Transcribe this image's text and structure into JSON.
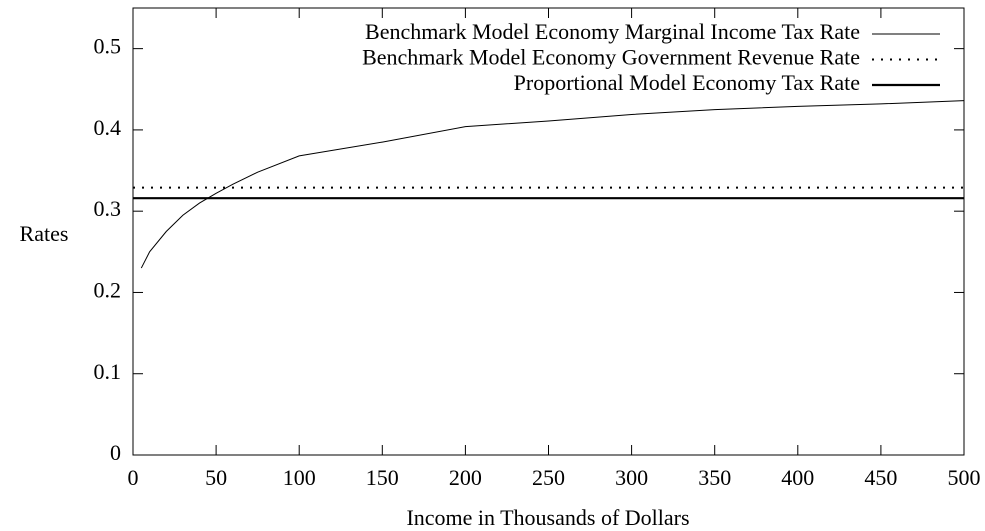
{
  "chart_data": {
    "type": "line",
    "xlabel": "Income in Thousands of Dollars",
    "ylabel": "Rates",
    "xlim": [
      0,
      500
    ],
    "ylim": [
      0,
      0.55
    ],
    "xticks": [
      0,
      50,
      100,
      150,
      200,
      250,
      300,
      350,
      400,
      450,
      500
    ],
    "yticks": [
      0,
      0.1,
      0.2,
      0.3,
      0.4,
      0.5
    ],
    "legend": "top-right",
    "series": [
      {
        "name": "Benchmark Model Economy Marginal Income Tax Rate",
        "color": "#000000",
        "style": "thin",
        "x": [
          5,
          10,
          20,
          30,
          40,
          50,
          60,
          75,
          100,
          150,
          200,
          250,
          300,
          350,
          400,
          450,
          500
        ],
        "values": [
          0.23,
          0.25,
          0.275,
          0.295,
          0.31,
          0.322,
          0.333,
          0.348,
          0.368,
          0.385,
          0.404,
          0.411,
          0.419,
          0.425,
          0.429,
          0.432,
          0.436
        ]
      },
      {
        "name": "Benchmark Model Economy Government Revenue Rate",
        "color": "#000000",
        "style": "dotted",
        "x": [
          0,
          500
        ],
        "values": [
          0.329,
          0.329
        ]
      },
      {
        "name": "Proportional Model Economy Tax Rate",
        "color": "#000000",
        "style": "thick",
        "x": [
          0,
          500
        ],
        "values": [
          0.316,
          0.316
        ]
      }
    ]
  }
}
